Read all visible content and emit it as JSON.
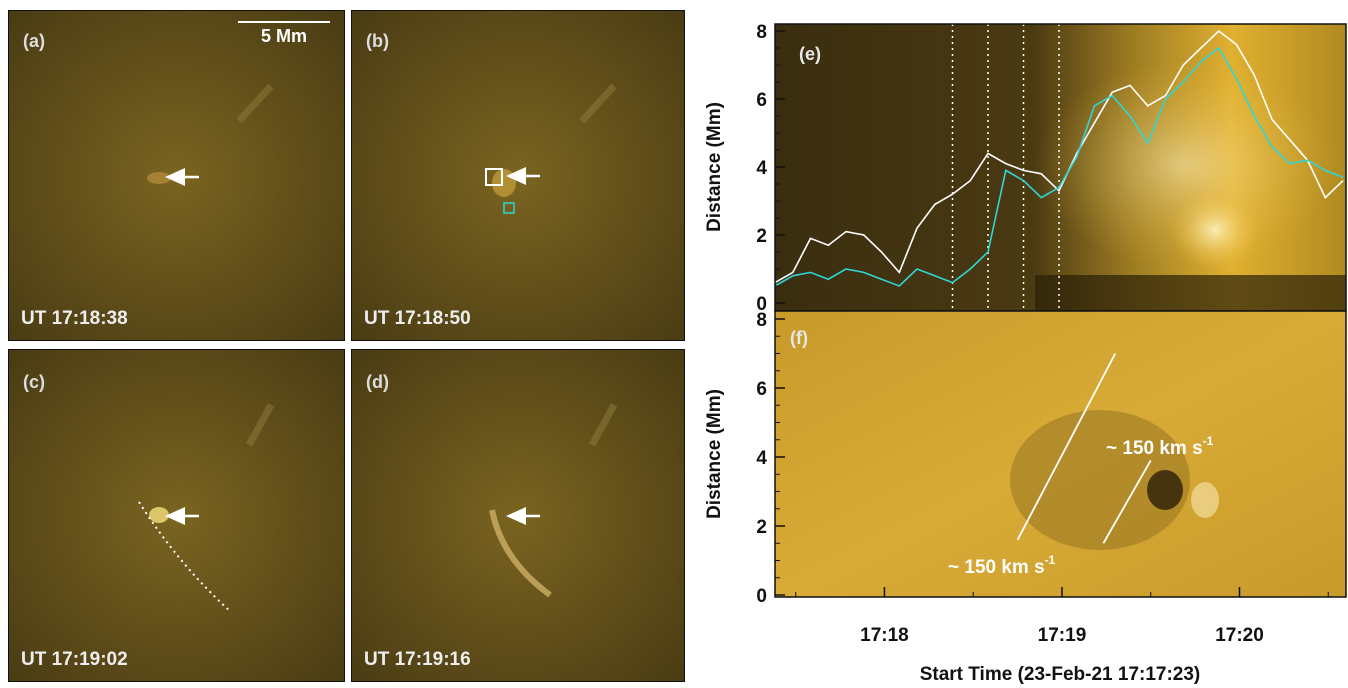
{
  "panels": [
    {
      "label": "(a)",
      "time": "UT 17:18:38"
    },
    {
      "label": "(b)",
      "time": "UT 17:18:50"
    },
    {
      "label": "(c)",
      "time": "UT 17:19:02"
    },
    {
      "label": "(d)",
      "time": "UT 17:19:16"
    }
  ],
  "scale_bar": "5 Mm",
  "chart_data": [
    {
      "type": "line",
      "panel": "(e)",
      "ylabel": "Distance (Mm)",
      "ylim": [
        0,
        8
      ],
      "yticks": [
        "0",
        "2",
        "4",
        "6",
        "8"
      ],
      "xlim_seconds": [
        0,
        193
      ],
      "vertical_dotted_lines_seconds": [
        60,
        72,
        84,
        96
      ],
      "background": "time-distance intensity map (brightening after 17:18:55)",
      "series": [
        {
          "color": "#ffffff",
          "x_seconds": [
            0,
            6,
            12,
            18,
            24,
            30,
            36,
            42,
            48,
            54,
            60,
            66,
            72,
            78,
            84,
            90,
            96,
            102,
            108,
            114,
            120,
            126,
            132,
            138,
            144,
            150,
            156,
            162,
            168,
            174,
            180,
            186,
            192
          ],
          "values": [
            0.6,
            0.9,
            1.9,
            1.7,
            2.1,
            2.0,
            1.5,
            0.9,
            2.2,
            2.9,
            3.2,
            3.6,
            4.4,
            4.1,
            3.9,
            3.8,
            3.3,
            4.4,
            5.3,
            6.2,
            6.4,
            5.8,
            6.1,
            7.0,
            7.5,
            8.0,
            7.6,
            6.7,
            5.4,
            4.8,
            4.2,
            3.1,
            3.6
          ]
        },
        {
          "color": "#2fd6d6",
          "x_seconds": [
            0,
            6,
            12,
            18,
            24,
            30,
            36,
            42,
            48,
            54,
            60,
            66,
            72,
            78,
            84,
            90,
            96,
            102,
            108,
            114,
            120,
            126,
            132,
            138,
            144,
            150,
            156,
            162,
            168,
            174,
            180,
            186,
            192
          ],
          "values": [
            0.5,
            0.8,
            0.9,
            0.7,
            1.0,
            0.9,
            0.7,
            0.5,
            1.0,
            0.8,
            0.6,
            1.0,
            1.5,
            3.9,
            3.6,
            3.1,
            3.4,
            4.3,
            5.8,
            6.1,
            5.5,
            4.7,
            6.0,
            6.5,
            7.1,
            7.5,
            6.6,
            5.5,
            4.6,
            4.1,
            4.2,
            3.9,
            3.7
          ]
        }
      ]
    },
    {
      "type": "scatter",
      "panel": "(f)",
      "ylabel": "Distance (Mm)",
      "xlabel": "Start Time (23-Feb-21 17:17:23)",
      "ylim": [
        0,
        8
      ],
      "yticks": [
        "0",
        "2",
        "4",
        "6",
        "8"
      ],
      "xtick_labels": [
        "17:18",
        "17:19",
        "17:20"
      ],
      "xtick_seconds": [
        37,
        97,
        157
      ],
      "xlim_seconds": [
        0,
        193
      ],
      "background": "running-difference time-distance map",
      "fit_lines": [
        {
          "x_seconds": [
            82,
            115
          ],
          "values": [
            1.6,
            7.0
          ]
        },
        {
          "x_seconds": [
            111,
            127
          ],
          "values": [
            1.5,
            3.9
          ]
        }
      ],
      "annotations": [
        {
          "text": "~ 150 km s",
          "sup": "-1"
        },
        {
          "text": "~ 150 km s",
          "sup": "-1"
        }
      ]
    }
  ]
}
